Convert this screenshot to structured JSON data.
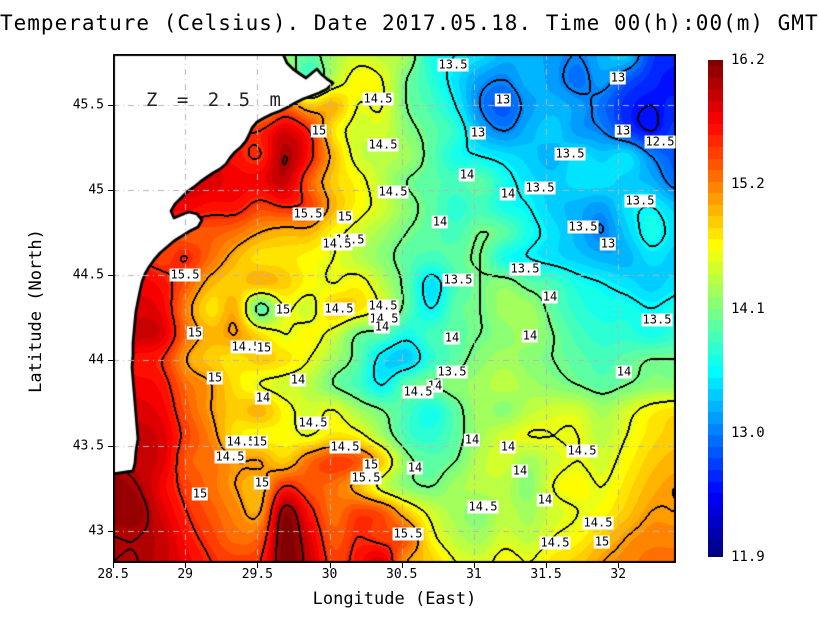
{
  "title": "Temperature (Celsius). Date 2017.05.18. Time 00(h):00(m) GMT",
  "annotation": "Z = 2.5 m",
  "axes": {
    "x": {
      "label": "Longitude (East)",
      "tick_labels": [
        "28.5",
        "29",
        "29.5",
        "30",
        "30.5",
        "31",
        "31.5",
        "32"
      ],
      "tick_values": [
        28.5,
        29,
        29.5,
        30,
        30.5,
        31,
        31.5,
        32
      ]
    },
    "y": {
      "label": "Latitude (North)",
      "tick_labels": [
        "45.5",
        "45",
        "44.5",
        "44",
        "43.5",
        "43"
      ],
      "tick_values": [
        45.5,
        45,
        44.5,
        44,
        43.5,
        43
      ]
    }
  },
  "colorbar": {
    "labels": [
      "16.2",
      "15.2",
      "14.1",
      "13.0",
      "11.9"
    ],
    "min": 11.9,
    "max": 16.2
  },
  "colors": {
    "land": "#ffffff",
    "coastline": "#000000",
    "gridline": "#b4b4b4",
    "frame": "#000000",
    "contour_line": "#000000",
    "label_bg": "#ffffff"
  },
  "chart_data": {
    "type": "heatmap",
    "title": "Temperature (Celsius). Date 2017.05.18. Time 00(h):00(m) GMT",
    "xlabel": "Longitude (East)",
    "ylabel": "Latitude (North)",
    "units": "Celsius",
    "depth_annotation": "Z = 2.5 m",
    "x_range": [
      28.5,
      32.4
    ],
    "y_range": [
      42.81,
      45.8
    ],
    "value_range": [
      11.9,
      16.2
    ],
    "contour_interval": 0.5,
    "colormap": "jet",
    "grid": {
      "nx": 24,
      "ny": 21,
      "values": [
        [
          14.8,
          14.8,
          14.8,
          14.8,
          14.8,
          14.8,
          14.8,
          14.2,
          13.9,
          14.2,
          14.4,
          14.3,
          14.2,
          13.6,
          13.5,
          13.4,
          13.2,
          13.2,
          13.1,
          13.0,
          13.2,
          13.3,
          12.7,
          12.6
        ],
        [
          15.0,
          15.0,
          15.0,
          15.0,
          15.0,
          15.0,
          15.0,
          14.5,
          13.8,
          14.3,
          14.6,
          14.5,
          14.0,
          13.7,
          13.4,
          13.1,
          13.0,
          13.2,
          13.1,
          12.9,
          13.1,
          12.8,
          12.6,
          12.5
        ],
        [
          15.2,
          15.2,
          15.2,
          15.2,
          15.2,
          15.2,
          14.8,
          15.2,
          14.8,
          14.9,
          14.5,
          14.5,
          14.0,
          13.8,
          13.5,
          13.0,
          12.8,
          13.1,
          13.2,
          13.1,
          12.9,
          12.6,
          12.5,
          12.6
        ],
        [
          15.5,
          15.5,
          15.5,
          15.5,
          15.5,
          15.5,
          15.5,
          15.8,
          15.5,
          14.7,
          14.4,
          14.4,
          14.1,
          13.9,
          13.7,
          13.2,
          13.0,
          13.2,
          13.3,
          13.1,
          13.0,
          12.7,
          12.5,
          12.7
        ],
        [
          15.7,
          15.7,
          15.7,
          15.7,
          15.7,
          15.6,
          15.5,
          16.0,
          15.6,
          14.9,
          14.4,
          14.3,
          14.2,
          13.9,
          13.6,
          13.5,
          13.4,
          13.3,
          13.2,
          13.4,
          13.3,
          13.4,
          13.0,
          12.8
        ],
        [
          15.8,
          15.8,
          15.8,
          15.8,
          15.8,
          15.7,
          15.7,
          15.9,
          15.3,
          14.8,
          14.6,
          14.3,
          14.0,
          13.9,
          13.8,
          13.9,
          13.6,
          13.4,
          13.3,
          13.4,
          13.4,
          13.3,
          13.2,
          12.9
        ],
        [
          15.7,
          15.7,
          15.7,
          15.7,
          15.6,
          15.6,
          15.4,
          15.5,
          15.4,
          14.9,
          14.6,
          14.4,
          14.1,
          13.9,
          13.7,
          13.8,
          13.6,
          13.5,
          13.3,
          13.2,
          13.1,
          13.4,
          13.5,
          13.3
        ],
        [
          15.4,
          15.4,
          15.4,
          15.3,
          15.3,
          15.2,
          15.0,
          14.9,
          14.9,
          14.6,
          14.4,
          14.2,
          14.0,
          13.9,
          13.8,
          14.0,
          13.9,
          13.6,
          13.4,
          13.2,
          13.0,
          13.3,
          13.6,
          13.4
        ],
        [
          15.5,
          15.5,
          15.4,
          15.5,
          15.2,
          14.9,
          14.7,
          14.7,
          14.6,
          14.5,
          14.3,
          14.1,
          13.9,
          13.8,
          13.9,
          14.0,
          13.6,
          13.5,
          13.4,
          13.3,
          13.2,
          13.2,
          13.4,
          13.3
        ],
        [
          15.7,
          15.7,
          15.6,
          15.3,
          14.9,
          14.8,
          14.9,
          14.8,
          14.6,
          14.5,
          14.6,
          14.3,
          13.9,
          13.4,
          13.8,
          14.0,
          14.1,
          13.9,
          13.8,
          13.6,
          13.5,
          13.4,
          13.3,
          13.4
        ],
        [
          15.8,
          15.8,
          15.7,
          15.1,
          14.7,
          14.9,
          13.9,
          14.5,
          14.4,
          14.8,
          14.7,
          14.4,
          13.9,
          13.5,
          13.9,
          14.0,
          14.2,
          14.2,
          13.9,
          13.7,
          13.6,
          13.6,
          13.5,
          13.6
        ],
        [
          15.9,
          15.9,
          15.8,
          15.2,
          14.9,
          15.0,
          14.7,
          14.5,
          14.6,
          14.4,
          14.0,
          13.9,
          13.6,
          13.8,
          13.9,
          14.0,
          14.1,
          14.2,
          14.0,
          13.8,
          13.7,
          13.7,
          13.6,
          13.7
        ],
        [
          15.6,
          15.6,
          15.5,
          15.0,
          14.8,
          14.7,
          14.8,
          14.7,
          14.5,
          14.2,
          13.9,
          13.4,
          13.3,
          13.7,
          13.9,
          14.1,
          14.2,
          14.1,
          14.0,
          13.9,
          13.8,
          13.9,
          14.0,
          14.0
        ],
        [
          15.7,
          15.7,
          15.6,
          15.2,
          15.0,
          14.7,
          14.5,
          14.4,
          14.3,
          14.0,
          13.8,
          13.5,
          13.9,
          14.0,
          14.1,
          14.2,
          14.3,
          14.2,
          14.1,
          14.0,
          13.9,
          14.0,
          14.1,
          14.1
        ],
        [
          15.8,
          15.8,
          15.7,
          15.3,
          15.0,
          14.8,
          14.9,
          14.6,
          14.4,
          14.5,
          14.2,
          14.0,
          13.8,
          13.6,
          13.9,
          14.2,
          14.1,
          14.3,
          14.4,
          14.4,
          14.2,
          14.4,
          14.6,
          14.7
        ],
        [
          15.9,
          15.9,
          15.8,
          15.4,
          15.1,
          14.7,
          14.6,
          14.6,
          14.5,
          14.7,
          14.6,
          14.2,
          13.8,
          13.7,
          13.9,
          14.2,
          14.4,
          14.5,
          14.5,
          14.5,
          14.3,
          14.5,
          14.7,
          14.8
        ],
        [
          16.0,
          15.9,
          15.8,
          15.3,
          15.2,
          15.0,
          15.0,
          14.8,
          15.2,
          15.4,
          15.3,
          14.8,
          14.1,
          13.9,
          14.0,
          14.3,
          14.4,
          14.2,
          14.4,
          14.5,
          14.4,
          14.6,
          14.8,
          14.9
        ],
        [
          16.1,
          16.0,
          15.7,
          15.4,
          15.2,
          15.0,
          14.9,
          15.5,
          15.3,
          15.2,
          14.9,
          14.4,
          14.1,
          14.0,
          14.2,
          14.3,
          14.3,
          14.1,
          14.5,
          14.6,
          14.5,
          14.7,
          14.9,
          15.0
        ],
        [
          16.1,
          16.1,
          15.8,
          15.5,
          15.3,
          15.1,
          15.0,
          16.1,
          15.6,
          15.2,
          15.4,
          15.3,
          14.8,
          14.4,
          14.2,
          14.1,
          14.3,
          14.2,
          14.4,
          14.5,
          14.6,
          14.8,
          15.0,
          15.0
        ],
        [
          16.0,
          16.0,
          15.9,
          15.6,
          15.4,
          15.2,
          15.3,
          16.2,
          15.8,
          15.3,
          15.5,
          15.4,
          15.3,
          14.6,
          14.3,
          14.2,
          14.4,
          14.3,
          14.5,
          14.6,
          14.8,
          15.0,
          15.1,
          15.1
        ],
        [
          16.0,
          16.0,
          15.9,
          15.7,
          15.5,
          15.4,
          15.5,
          16.2,
          15.9,
          15.4,
          15.6,
          15.8,
          15.0,
          14.8,
          14.5,
          14.4,
          14.6,
          14.5,
          14.7,
          14.8,
          15.0,
          15.1,
          15.2,
          15.2
        ]
      ]
    },
    "contour_labels": [
      {
        "x": 453,
        "y": 65,
        "t": "13.5"
      },
      {
        "x": 618,
        "y": 78,
        "t": "13"
      },
      {
        "x": 503,
        "y": 100,
        "t": "13"
      },
      {
        "x": 378,
        "y": 99,
        "t": "14.5"
      },
      {
        "x": 319,
        "y": 131,
        "t": "15"
      },
      {
        "x": 623,
        "y": 131,
        "t": "13"
      },
      {
        "x": 660,
        "y": 142,
        "t": "12.5"
      },
      {
        "x": 478,
        "y": 133,
        "t": "13"
      },
      {
        "x": 383,
        "y": 145,
        "t": "14.5"
      },
      {
        "x": 570,
        "y": 154,
        "t": "13.5"
      },
      {
        "x": 540,
        "y": 188,
        "t": "13.5"
      },
      {
        "x": 508,
        "y": 194,
        "t": "14"
      },
      {
        "x": 467,
        "y": 175,
        "t": "14"
      },
      {
        "x": 640,
        "y": 201,
        "t": "13.5"
      },
      {
        "x": 393,
        "y": 192,
        "t": "14.5"
      },
      {
        "x": 308,
        "y": 214,
        "t": "15.5"
      },
      {
        "x": 345,
        "y": 217,
        "t": "15"
      },
      {
        "x": 440,
        "y": 222,
        "t": "14"
      },
      {
        "x": 583,
        "y": 227,
        "t": "13.5"
      },
      {
        "x": 608,
        "y": 244,
        "t": "13"
      },
      {
        "x": 350,
        "y": 240,
        "t": "14.5"
      },
      {
        "x": 337,
        "y": 244,
        "t": "14.5"
      },
      {
        "x": 525,
        "y": 269,
        "t": "13.5"
      },
      {
        "x": 185,
        "y": 275,
        "t": "15.5"
      },
      {
        "x": 458,
        "y": 280,
        "t": "13.5"
      },
      {
        "x": 550,
        "y": 297,
        "t": "14"
      },
      {
        "x": 283,
        "y": 310,
        "t": "15"
      },
      {
        "x": 657,
        "y": 320,
        "t": "13.5"
      },
      {
        "x": 339,
        "y": 309,
        "t": "14.5"
      },
      {
        "x": 383,
        "y": 306,
        "t": "14.5"
      },
      {
        "x": 384,
        "y": 319,
        "t": "14.5"
      },
      {
        "x": 382,
        "y": 327,
        "t": "14"
      },
      {
        "x": 195,
        "y": 333,
        "t": "15"
      },
      {
        "x": 530,
        "y": 336,
        "t": "14"
      },
      {
        "x": 452,
        "y": 338,
        "t": "14"
      },
      {
        "x": 246,
        "y": 347,
        "t": "14.5"
      },
      {
        "x": 264,
        "y": 348,
        "t": "15"
      },
      {
        "x": 452,
        "y": 372,
        "t": "13.5"
      },
      {
        "x": 624,
        "y": 372,
        "t": "14"
      },
      {
        "x": 215,
        "y": 378,
        "t": "15"
      },
      {
        "x": 298,
        "y": 380,
        "t": "14"
      },
      {
        "x": 435,
        "y": 386,
        "t": "14"
      },
      {
        "x": 418,
        "y": 392,
        "t": "14.5"
      },
      {
        "x": 263,
        "y": 398,
        "t": "14"
      },
      {
        "x": 313,
        "y": 423,
        "t": "14.5"
      },
      {
        "x": 241,
        "y": 442,
        "t": "14.5"
      },
      {
        "x": 260,
        "y": 442,
        "t": "15"
      },
      {
        "x": 345,
        "y": 447,
        "t": "14.5"
      },
      {
        "x": 230,
        "y": 457,
        "t": "14.5"
      },
      {
        "x": 472,
        "y": 440,
        "t": "14"
      },
      {
        "x": 508,
        "y": 447,
        "t": "14"
      },
      {
        "x": 415,
        "y": 468,
        "t": "14"
      },
      {
        "x": 582,
        "y": 451,
        "t": "14.5"
      },
      {
        "x": 520,
        "y": 471,
        "t": "14"
      },
      {
        "x": 371,
        "y": 465,
        "t": "15"
      },
      {
        "x": 366,
        "y": 478,
        "t": "15.5"
      },
      {
        "x": 262,
        "y": 483,
        "t": "15"
      },
      {
        "x": 200,
        "y": 494,
        "t": "15"
      },
      {
        "x": 545,
        "y": 500,
        "t": "14"
      },
      {
        "x": 483,
        "y": 507,
        "t": "14.5"
      },
      {
        "x": 408,
        "y": 534,
        "t": "15.5"
      },
      {
        "x": 598,
        "y": 523,
        "t": "14.5"
      },
      {
        "x": 602,
        "y": 542,
        "t": "15"
      },
      {
        "x": 555,
        "y": 543,
        "t": "14.5"
      }
    ],
    "coastline": [
      [
        283,
        54
      ],
      [
        287,
        63
      ],
      [
        293,
        69
      ],
      [
        300,
        74
      ],
      [
        306,
        78
      ],
      [
        312,
        73
      ],
      [
        317,
        69
      ],
      [
        321,
        74
      ],
      [
        327,
        79
      ],
      [
        333,
        83
      ],
      [
        327,
        89
      ],
      [
        319,
        93
      ],
      [
        311,
        96
      ],
      [
        303,
        99
      ],
      [
        295,
        103
      ],
      [
        288,
        107
      ],
      [
        280,
        111
      ],
      [
        272,
        114
      ],
      [
        264,
        118
      ],
      [
        257,
        122
      ],
      [
        252,
        128
      ],
      [
        249,
        135
      ],
      [
        246,
        141
      ],
      [
        241,
        147
      ],
      [
        235,
        152
      ],
      [
        230,
        158
      ],
      [
        226,
        164
      ],
      [
        220,
        169
      ],
      [
        213,
        173
      ],
      [
        207,
        177
      ],
      [
        200,
        182
      ],
      [
        194,
        187
      ],
      [
        187,
        192
      ],
      [
        181,
        198
      ],
      [
        175,
        204
      ],
      [
        171,
        211
      ],
      [
        174,
        218
      ],
      [
        181,
        215
      ],
      [
        189,
        212
      ],
      [
        197,
        214
      ],
      [
        202,
        220
      ],
      [
        198,
        227
      ],
      [
        190,
        231
      ],
      [
        182,
        236
      ],
      [
        174,
        241
      ],
      [
        167,
        247
      ],
      [
        160,
        253
      ],
      [
        154,
        260
      ],
      [
        149,
        267
      ],
      [
        145,
        274
      ],
      [
        142,
        282
      ],
      [
        140,
        291
      ],
      [
        138,
        301
      ],
      [
        136,
        311
      ],
      [
        135,
        321
      ],
      [
        134,
        332
      ],
      [
        133,
        343
      ],
      [
        133,
        355
      ],
      [
        132,
        367
      ],
      [
        133,
        379
      ],
      [
        134,
        391
      ],
      [
        135,
        403
      ],
      [
        136,
        415
      ],
      [
        137,
        427
      ],
      [
        138,
        439
      ],
      [
        136,
        451
      ],
      [
        135,
        463
      ],
      [
        133,
        471
      ],
      [
        113,
        474
      ]
    ]
  }
}
